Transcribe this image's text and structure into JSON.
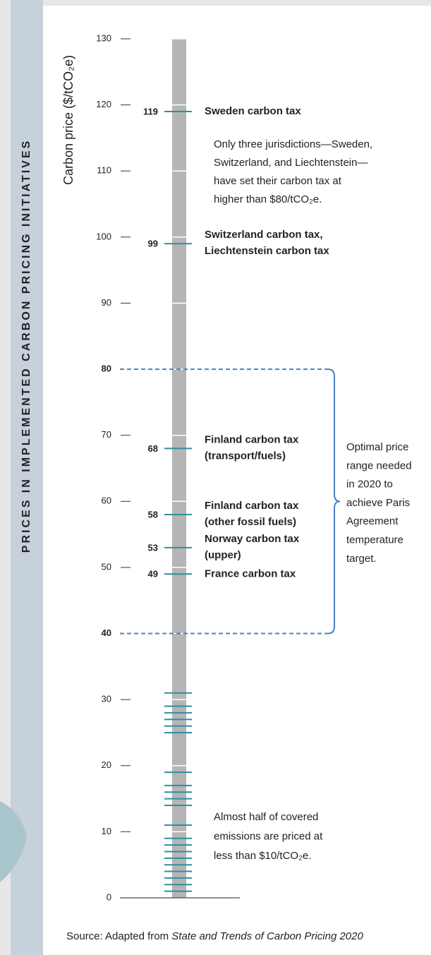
{
  "chart_data": {
    "type": "scale",
    "side_title": "PRICES IN IMPLEMENTED CARBON PRICING INITIATIVES",
    "y_label": "Carbon price ($/tCO₂e)",
    "ylim": [
      0,
      130
    ],
    "yticks": [
      0,
      10,
      20,
      30,
      40,
      50,
      60,
      70,
      80,
      90,
      100,
      110,
      120,
      130
    ],
    "bar_color": "#b5b5b5",
    "mark_color": "#2f8f9d",
    "number_color": "#2b4a6a",
    "labeled": [
      {
        "value": 119,
        "label": [
          "Sweden carbon tax"
        ]
      },
      {
        "value": 99,
        "label": [
          "Switzerland carbon tax,",
          "Liechtenstein carbon tax"
        ]
      },
      {
        "value": 68,
        "label": [
          "Finland carbon tax",
          "(transport/fuels)"
        ]
      },
      {
        "value": 58,
        "label": [
          "Finland carbon tax",
          "(other fossil fuels)"
        ]
      },
      {
        "value": 53,
        "label": [
          "Norway carbon tax",
          "(upper)"
        ]
      },
      {
        "value": 49,
        "label": [
          "France carbon tax"
        ]
      }
    ],
    "values": [
      31,
      29,
      28,
      27,
      26,
      25,
      19,
      17,
      16,
      15,
      14,
      11,
      9,
      8,
      7,
      6,
      5,
      4,
      3,
      2,
      1
    ],
    "range": {
      "values": [
        40,
        80
      ],
      "color": "#4a80c4",
      "label": [
        "Optimal price",
        "range needed",
        "in 2020 to",
        "achieve Paris",
        "Agreement",
        "temperature",
        "target."
      ]
    },
    "annotations": [
      {
        "lines": [
          "Only three jurisdictions—Sweden,",
          "Switzerland, and Liechtenstein—",
          "have set their carbon tax at",
          "higher than $80/tCO₂e."
        ]
      },
      {
        "lines": [
          "Almost half of covered",
          "emissions are priced at",
          "less than $10/tCO₂e."
        ]
      }
    ],
    "source": [
      "Source: Adapted from ",
      "State and Trends of Carbon Pricing 2020"
    ]
  }
}
